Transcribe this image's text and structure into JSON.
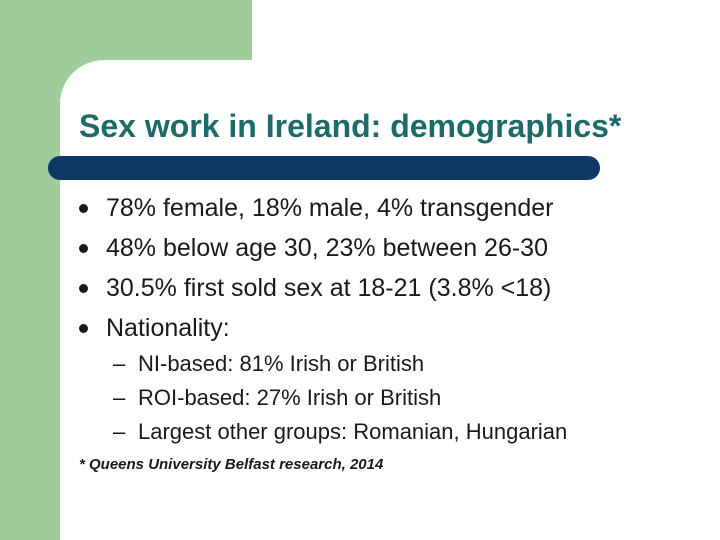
{
  "slide": {
    "title": "Sex work in Ireland: demographics*",
    "bullets": [
      "78% female, 18% male, 4% transgender",
      "48% below age 30, 23% between 26-30",
      "30.5% first sold sex at 18-21 (3.8% <18)",
      "Nationality:"
    ],
    "dash_glyph": "–",
    "sub_bullets": [
      "NI-based: 81% Irish or British",
      "ROI-based: 27% Irish or British",
      "Largest other groups: Romanian, Hungarian"
    ],
    "footnote": "* Queens University Belfast research, 2014"
  },
  "colors": {
    "accent_green": "#9fcc9b",
    "title_teal": "#1c6b6a",
    "rule_navy": "#0f3864"
  }
}
